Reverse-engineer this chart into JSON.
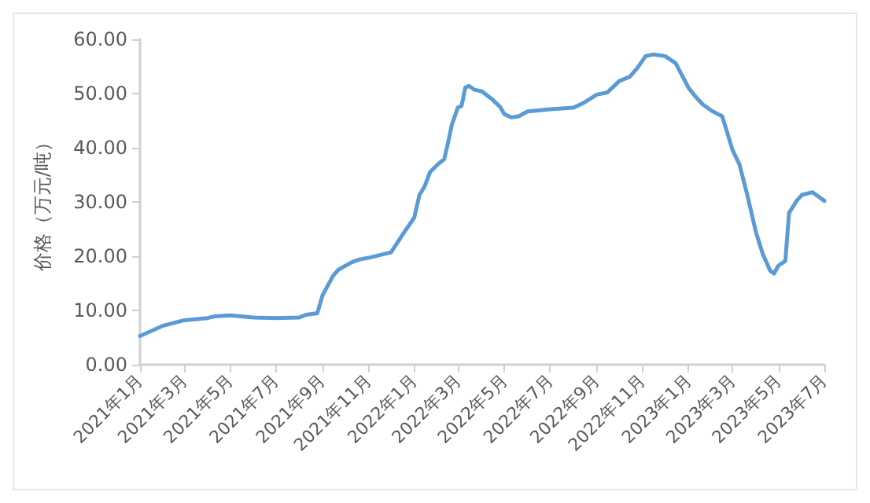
{
  "chart_data": {
    "type": "line",
    "ylabel": "价格（万元/吨）",
    "x": [
      "2021-01-01",
      "2021-02-01",
      "2021-03-01",
      "2021-04-01",
      "2021-04-10",
      "2021-05-01",
      "2021-06-01",
      "2021-07-01",
      "2021-08-01",
      "2021-08-10",
      "2021-08-25",
      "2021-09-01",
      "2021-09-15",
      "2021-09-22",
      "2021-10-01",
      "2021-10-10",
      "2021-10-20",
      "2021-11-01",
      "2021-12-01",
      "2021-12-10",
      "2021-12-20",
      "2022-01-01",
      "2022-01-08",
      "2022-01-15",
      "2022-01-22",
      "2022-02-01",
      "2022-02-10",
      "2022-02-15",
      "2022-02-20",
      "2022-02-28",
      "2022-03-05",
      "2022-03-10",
      "2022-03-15",
      "2022-03-22",
      "2022-04-01",
      "2022-04-15",
      "2022-04-25",
      "2022-05-01",
      "2022-05-10",
      "2022-05-20",
      "2022-06-01",
      "2022-06-15",
      "2022-07-01",
      "2022-08-01",
      "2022-08-15",
      "2022-09-01",
      "2022-09-15",
      "2022-10-01",
      "2022-10-15",
      "2022-10-25",
      "2022-11-05",
      "2022-11-15",
      "2022-12-01",
      "2022-12-15",
      "2023-01-01",
      "2023-01-10",
      "2023-01-20",
      "2023-02-01",
      "2023-02-15",
      "2023-03-01",
      "2023-03-10",
      "2023-03-20",
      "2023-04-01",
      "2023-04-10",
      "2023-04-20",
      "2023-04-25",
      "2023-05-01",
      "2023-05-10",
      "2023-05-15",
      "2023-05-25",
      "2023-06-01",
      "2023-06-15",
      "2023-07-01"
    ],
    "series": [
      {
        "color": "#5b9bd5",
        "values": [
          5.3,
          7.2,
          8.2,
          8.6,
          8.9,
          9.1,
          8.7,
          8.6,
          8.7,
          9.2,
          9.5,
          12.8,
          16.4,
          17.5,
          18.2,
          18.9,
          19.4,
          19.7,
          20.7,
          22.6,
          24.7,
          27.1,
          31.3,
          32.9,
          35.5,
          36.9,
          37.9,
          40.9,
          44.2,
          47.4,
          47.7,
          51.1,
          51.4,
          50.7,
          50.4,
          48.9,
          47.6,
          46.2,
          45.6,
          45.8,
          46.7,
          46.9,
          47.1,
          47.4,
          48.3,
          49.8,
          50.2,
          52.3,
          53.1,
          54.7,
          56.9,
          57.2,
          56.9,
          55.6,
          51.1,
          49.5,
          48.0,
          46.8,
          45.8,
          39.5,
          36.9,
          31.5,
          24.4,
          20.4,
          17.3,
          16.8,
          18.3,
          19.1,
          28.0,
          30.2,
          31.3,
          31.8,
          30.2
        ]
      }
    ],
    "xlim": [
      "2021-01-01",
      "2023-07-01"
    ],
    "xticks": [
      {
        "value": "2021-01-01",
        "label": "2021年1月"
      },
      {
        "value": "2021-03-01",
        "label": "2021年3月"
      },
      {
        "value": "2021-05-01",
        "label": "2021年5月"
      },
      {
        "value": "2021-07-01",
        "label": "2021年7月"
      },
      {
        "value": "2021-09-01",
        "label": "2021年9月"
      },
      {
        "value": "2021-11-01",
        "label": "2021年11月"
      },
      {
        "value": "2022-01-01",
        "label": "2022年1月"
      },
      {
        "value": "2022-03-01",
        "label": "2022年3月"
      },
      {
        "value": "2022-05-01",
        "label": "2022年5月"
      },
      {
        "value": "2022-07-01",
        "label": "2022年7月"
      },
      {
        "value": "2022-09-01",
        "label": "2022年9月"
      },
      {
        "value": "2022-11-01",
        "label": "2022年11月"
      },
      {
        "value": "2023-01-01",
        "label": "2023年1月"
      },
      {
        "value": "2023-03-01",
        "label": "2023年3月"
      },
      {
        "value": "2023-05-01",
        "label": "2023年5月"
      },
      {
        "value": "2023-07-01",
        "label": "2023年7月"
      }
    ],
    "ylim": [
      0,
      60
    ],
    "yticks": [
      {
        "value": 0,
        "label": "0.00"
      },
      {
        "value": 10,
        "label": "10.00"
      },
      {
        "value": 20,
        "label": "20.00"
      },
      {
        "value": 30,
        "label": "30.00"
      },
      {
        "value": 40,
        "label": "40.00"
      },
      {
        "value": 50,
        "label": "50.00"
      },
      {
        "value": 60,
        "label": "60.00"
      }
    ],
    "grid": false,
    "marker": "none",
    "line_style": "solid"
  }
}
